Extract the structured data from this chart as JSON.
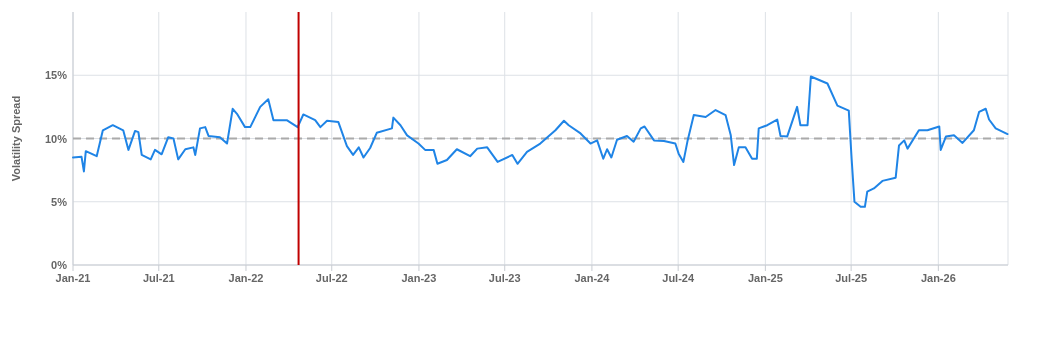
{
  "chart_data": {
    "type": "line",
    "ylabel": "Volatility Spread",
    "x": [
      "2021-01-01",
      "2021-01-19",
      "2021-01-24",
      "2021-01-28",
      "2021-02-20",
      "2021-03-05",
      "2021-03-26",
      "2021-04-17",
      "2021-04-28",
      "2021-05-12",
      "2021-05-19",
      "2021-05-26",
      "2021-06-14",
      "2021-06-23",
      "2021-07-07",
      "2021-07-21",
      "2021-08-01",
      "2021-08-11",
      "2021-08-26",
      "2021-09-12",
      "2021-09-16",
      "2021-09-26",
      "2021-10-07",
      "2021-10-14",
      "2021-11-07",
      "2021-11-22",
      "2021-12-04",
      "2021-12-13",
      "2021-12-30",
      "2022-01-10",
      "2022-01-31",
      "2022-02-17",
      "2022-02-28",
      "2022-03-28",
      "2022-04-20",
      "2022-05-02",
      "2022-05-27",
      "2022-06-07",
      "2022-06-21",
      "2022-07-15",
      "2022-08-02",
      "2022-08-15",
      "2022-08-27",
      "2022-09-06",
      "2022-09-20",
      "2022-10-04",
      "2022-11-05",
      "2022-11-08",
      "2022-11-23",
      "2022-12-07",
      "2022-12-31",
      "2023-01-14",
      "2023-02-01",
      "2023-02-09",
      "2023-03-01",
      "2023-03-22",
      "2023-04-19",
      "2023-05-04",
      "2023-05-25",
      "2023-06-16",
      "2023-07-17",
      "2023-07-28",
      "2023-08-17",
      "2023-09-14",
      "2023-10-16",
      "2023-11-03",
      "2023-11-13",
      "2023-12-08",
      "2023-12-29",
      "2024-01-12",
      "2024-01-25",
      "2024-02-02",
      "2024-02-11",
      "2024-02-23",
      "2024-03-15",
      "2024-03-29",
      "2024-04-13",
      "2024-04-21",
      "2024-05-11",
      "2024-06-01",
      "2024-06-25",
      "2024-07-02",
      "2024-07-12",
      "2024-07-21",
      "2024-08-03",
      "2024-08-28",
      "2024-09-18",
      "2024-10-09",
      "2024-10-20",
      "2024-10-27",
      "2024-11-06",
      "2024-11-20",
      "2024-12-04",
      "2024-12-14",
      "2024-12-18",
      "2025-01-05",
      "2025-01-26",
      "2025-02-02",
      "2025-02-16",
      "2025-03-09",
      "2025-03-16",
      "2025-03-31",
      "2025-04-07",
      "2025-05-12",
      "2025-06-02",
      "2025-06-26",
      "2025-07-02",
      "2025-07-08",
      "2025-07-21",
      "2025-07-30",
      "2025-08-04",
      "2025-08-18",
      "2025-09-05",
      "2025-10-03",
      "2025-10-10",
      "2025-10-21",
      "2025-10-28",
      "2025-11-21",
      "2025-12-09",
      "2026-01-03",
      "2026-01-06",
      "2026-01-17",
      "2026-02-03",
      "2026-02-21",
      "2026-03-17",
      "2026-03-28",
      "2026-04-11",
      "2026-04-18",
      "2026-05-02",
      "2026-05-27"
    ],
    "series": [
      {
        "color": "#1f84e6",
        "values": [
          8.5,
          8.55,
          7.4,
          9.0,
          8.6,
          10.65,
          11.05,
          10.65,
          9.1,
          10.6,
          10.5,
          8.7,
          8.35,
          9.1,
          8.75,
          10.1,
          10.0,
          8.35,
          9.15,
          9.3,
          8.7,
          10.8,
          10.9,
          10.2,
          10.1,
          9.6,
          12.35,
          11.95,
          10.9,
          10.9,
          12.5,
          13.1,
          11.45,
          11.45,
          10.9,
          11.9,
          11.45,
          10.9,
          11.4,
          11.3,
          9.4,
          8.7,
          9.3,
          8.5,
          9.25,
          10.45,
          10.8,
          11.65,
          11.05,
          10.25,
          9.6,
          9.1,
          9.1,
          8.0,
          8.3,
          9.15,
          8.6,
          9.2,
          9.3,
          8.15,
          8.7,
          8.0,
          8.95,
          9.6,
          10.65,
          11.4,
          11.05,
          10.4,
          9.6,
          9.85,
          8.4,
          9.15,
          8.5,
          9.9,
          10.2,
          9.75,
          10.8,
          10.95,
          9.85,
          9.8,
          9.6,
          8.8,
          8.15,
          9.85,
          11.85,
          11.7,
          12.25,
          11.85,
          10.25,
          7.9,
          9.3,
          9.3,
          8.4,
          8.4,
          10.8,
          11.05,
          11.5,
          10.2,
          10.15,
          12.5,
          11.05,
          11.05,
          14.9,
          14.35,
          12.6,
          12.2,
          8.4,
          5.0,
          4.6,
          4.6,
          5.8,
          6.05,
          6.65,
          6.9,
          9.45,
          9.85,
          9.2,
          10.65,
          10.65,
          10.95,
          9.1,
          10.15,
          10.25,
          9.65,
          10.65,
          12.1,
          12.35,
          11.5,
          10.8,
          10.35
        ]
      }
    ],
    "xlim": [
      "2021-01-01",
      "2026-05-28"
    ],
    "xticks": [
      {
        "value": "2021-01",
        "label": "Jan-21"
      },
      {
        "value": "2021-07",
        "label": "Jul-21"
      },
      {
        "value": "2022-01",
        "label": "Jan-22"
      },
      {
        "value": "2022-07",
        "label": "Jul-22"
      },
      {
        "value": "2023-01",
        "label": "Jan-23"
      },
      {
        "value": "2023-07",
        "label": "Jul-23"
      },
      {
        "value": "2024-01",
        "label": "Jan-24"
      },
      {
        "value": "2024-07",
        "label": "Jul-24"
      },
      {
        "value": "2025-01",
        "label": "Jan-25"
      },
      {
        "value": "2025-07",
        "label": "Jul-25"
      },
      {
        "value": "2026-01",
        "label": "Jan-26"
      }
    ],
    "ylim": [
      0,
      20
    ],
    "yticks": [
      {
        "value": 0,
        "label": "0%"
      },
      {
        "value": 5,
        "label": "5%"
      },
      {
        "value": 10,
        "label": "10%"
      },
      {
        "value": 15,
        "label": "15%"
      }
    ],
    "ref_lines": [
      {
        "axis": "y",
        "value": 10,
        "color": "#aaaaaa",
        "line_style": "dashed"
      },
      {
        "axis": "x",
        "value": "2022-04-22",
        "color": "#c00000",
        "line_style": "solid"
      }
    ],
    "grid": true,
    "marker": "none",
    "line_style": "solid"
  }
}
